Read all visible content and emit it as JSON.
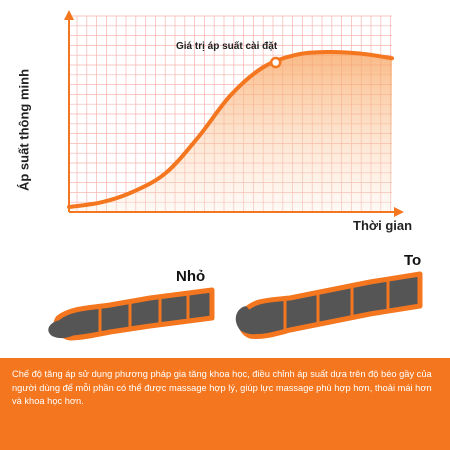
{
  "chart_data": {
    "type": "line",
    "ylabel": "Áp suất thông minh",
    "xlabel": "Thời gian",
    "annotation": "Giá trị áp suất cài đặt",
    "grid": true,
    "x": [
      0,
      0.1,
      0.2,
      0.3,
      0.4,
      0.5,
      0.6,
      0.7,
      0.8,
      0.9,
      1.0
    ],
    "y": [
      0.0,
      0.03,
      0.1,
      0.22,
      0.45,
      0.72,
      0.9,
      0.98,
      1.0,
      0.99,
      0.96
    ],
    "marker_x": 0.64,
    "colors": {
      "line": "#f4761f",
      "grid": "#f6b5b0",
      "fill_top": "#f8a25c",
      "axis": "#f4761f"
    }
  },
  "comparison": {
    "small_label": "Nhỏ",
    "large_label": "To"
  },
  "caption": "Chế độ tăng áp sử dụng phương pháp gia tăng khoa học, điều chỉnh áp suất dựa trên độ béo gầy của người dùng để mỗi phần có thể được massage hợp lý, giúp lực massage phù hợp hơn, thoải mái hơn và khoa học hơn."
}
